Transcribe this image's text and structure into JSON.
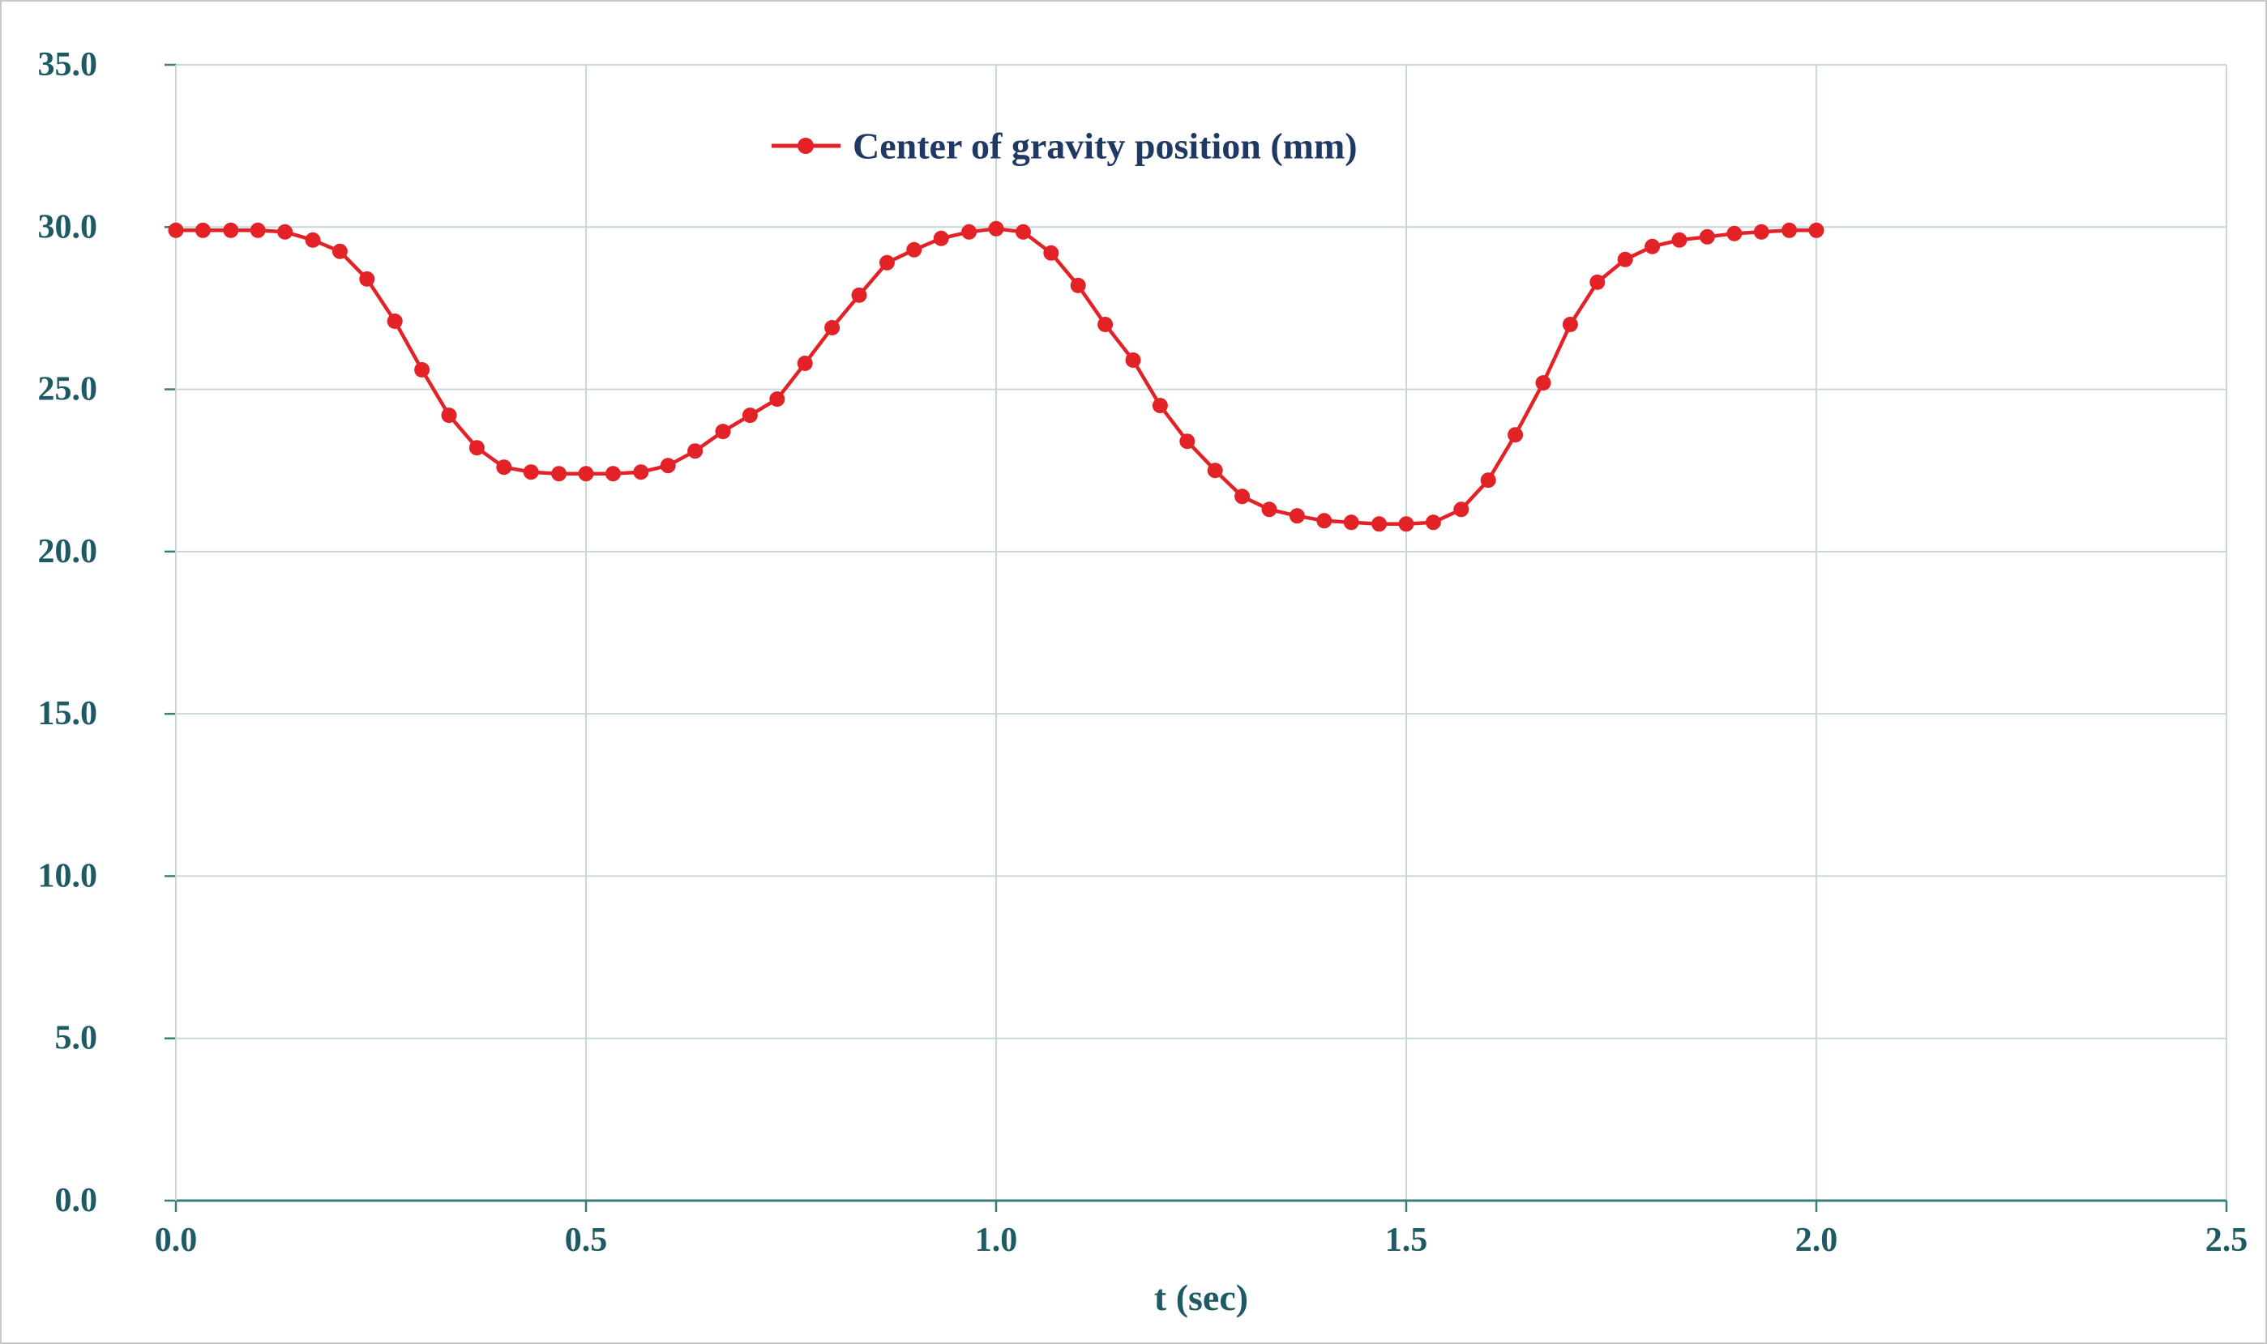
{
  "figure": {
    "background": "#ffffff",
    "border_color": "#c9c9c9"
  },
  "chart_data": {
    "type": "line",
    "title": "",
    "xlabel": "t (sec)",
    "ylabel": "",
    "xlim": [
      0,
      2.5
    ],
    "ylim": [
      0,
      35
    ],
    "x_ticks": [
      "0.0",
      "0.5",
      "1.0",
      "1.5",
      "2.0",
      "2.5"
    ],
    "y_ticks": [
      "0.0",
      "5.0",
      "10.0",
      "15.0",
      "20.0",
      "25.0",
      "30.0",
      "35.0"
    ],
    "grid": true,
    "legend_position": "top-center-inside",
    "colors": {
      "line": "#e32227",
      "marker": "#e32227",
      "grid": "#c9d7d7",
      "axis": "#3a7c7c",
      "tick_label": "#1d5a63",
      "axis_title": "#1d5a63",
      "legend_text": "#1f3864"
    },
    "series": [
      {
        "name": "Center of gravity position (mm)",
        "x": [
          0.0,
          0.033,
          0.067,
          0.1,
          0.133,
          0.167,
          0.2,
          0.233,
          0.267,
          0.3,
          0.333,
          0.367,
          0.4,
          0.433,
          0.467,
          0.5,
          0.533,
          0.567,
          0.6,
          0.633,
          0.667,
          0.7,
          0.733,
          0.767,
          0.8,
          0.833,
          0.867,
          0.9,
          0.933,
          0.967,
          1.0,
          1.033,
          1.067,
          1.1,
          1.133,
          1.167,
          1.2,
          1.233,
          1.267,
          1.3,
          1.333,
          1.367,
          1.4,
          1.433,
          1.467,
          1.5,
          1.533,
          1.567,
          1.6,
          1.633,
          1.667,
          1.7,
          1.733,
          1.767,
          1.8,
          1.833,
          1.867,
          1.9,
          1.933,
          1.967,
          2.0
        ],
        "y": [
          29.9,
          29.9,
          29.9,
          29.9,
          29.85,
          29.6,
          29.25,
          28.4,
          27.1,
          25.6,
          24.2,
          23.2,
          22.6,
          22.45,
          22.4,
          22.4,
          22.4,
          22.45,
          22.65,
          23.1,
          23.7,
          24.2,
          24.7,
          25.8,
          26.9,
          27.9,
          28.9,
          29.3,
          29.65,
          29.85,
          29.95,
          29.85,
          29.2,
          28.2,
          27.0,
          25.9,
          24.5,
          23.4,
          22.5,
          21.7,
          21.3,
          21.1,
          20.95,
          20.9,
          20.85,
          20.85,
          20.9,
          21.3,
          22.2,
          23.6,
          25.2,
          27.0,
          28.3,
          29.0,
          29.4,
          29.6,
          29.7,
          29.8,
          29.85,
          29.9,
          29.9
        ]
      }
    ]
  }
}
